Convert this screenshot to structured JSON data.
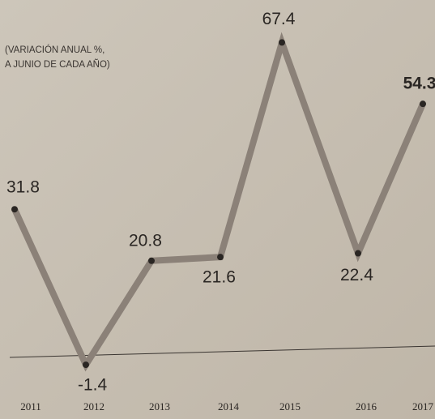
{
  "chart_data": {
    "type": "line",
    "subtitle": [
      "(VARIACIÓN ANUAL %,",
      "A JUNIO DE CADA AÑO)"
    ],
    "categories": [
      "2011",
      "2012",
      "2013",
      "2014",
      "2015",
      "2016",
      "2017"
    ],
    "series": [
      {
        "color": "#8b8178",
        "values": [
          31.8,
          -1.4,
          20.8,
          21.6,
          67.4,
          22.4,
          54.3
        ]
      }
    ]
  }
}
